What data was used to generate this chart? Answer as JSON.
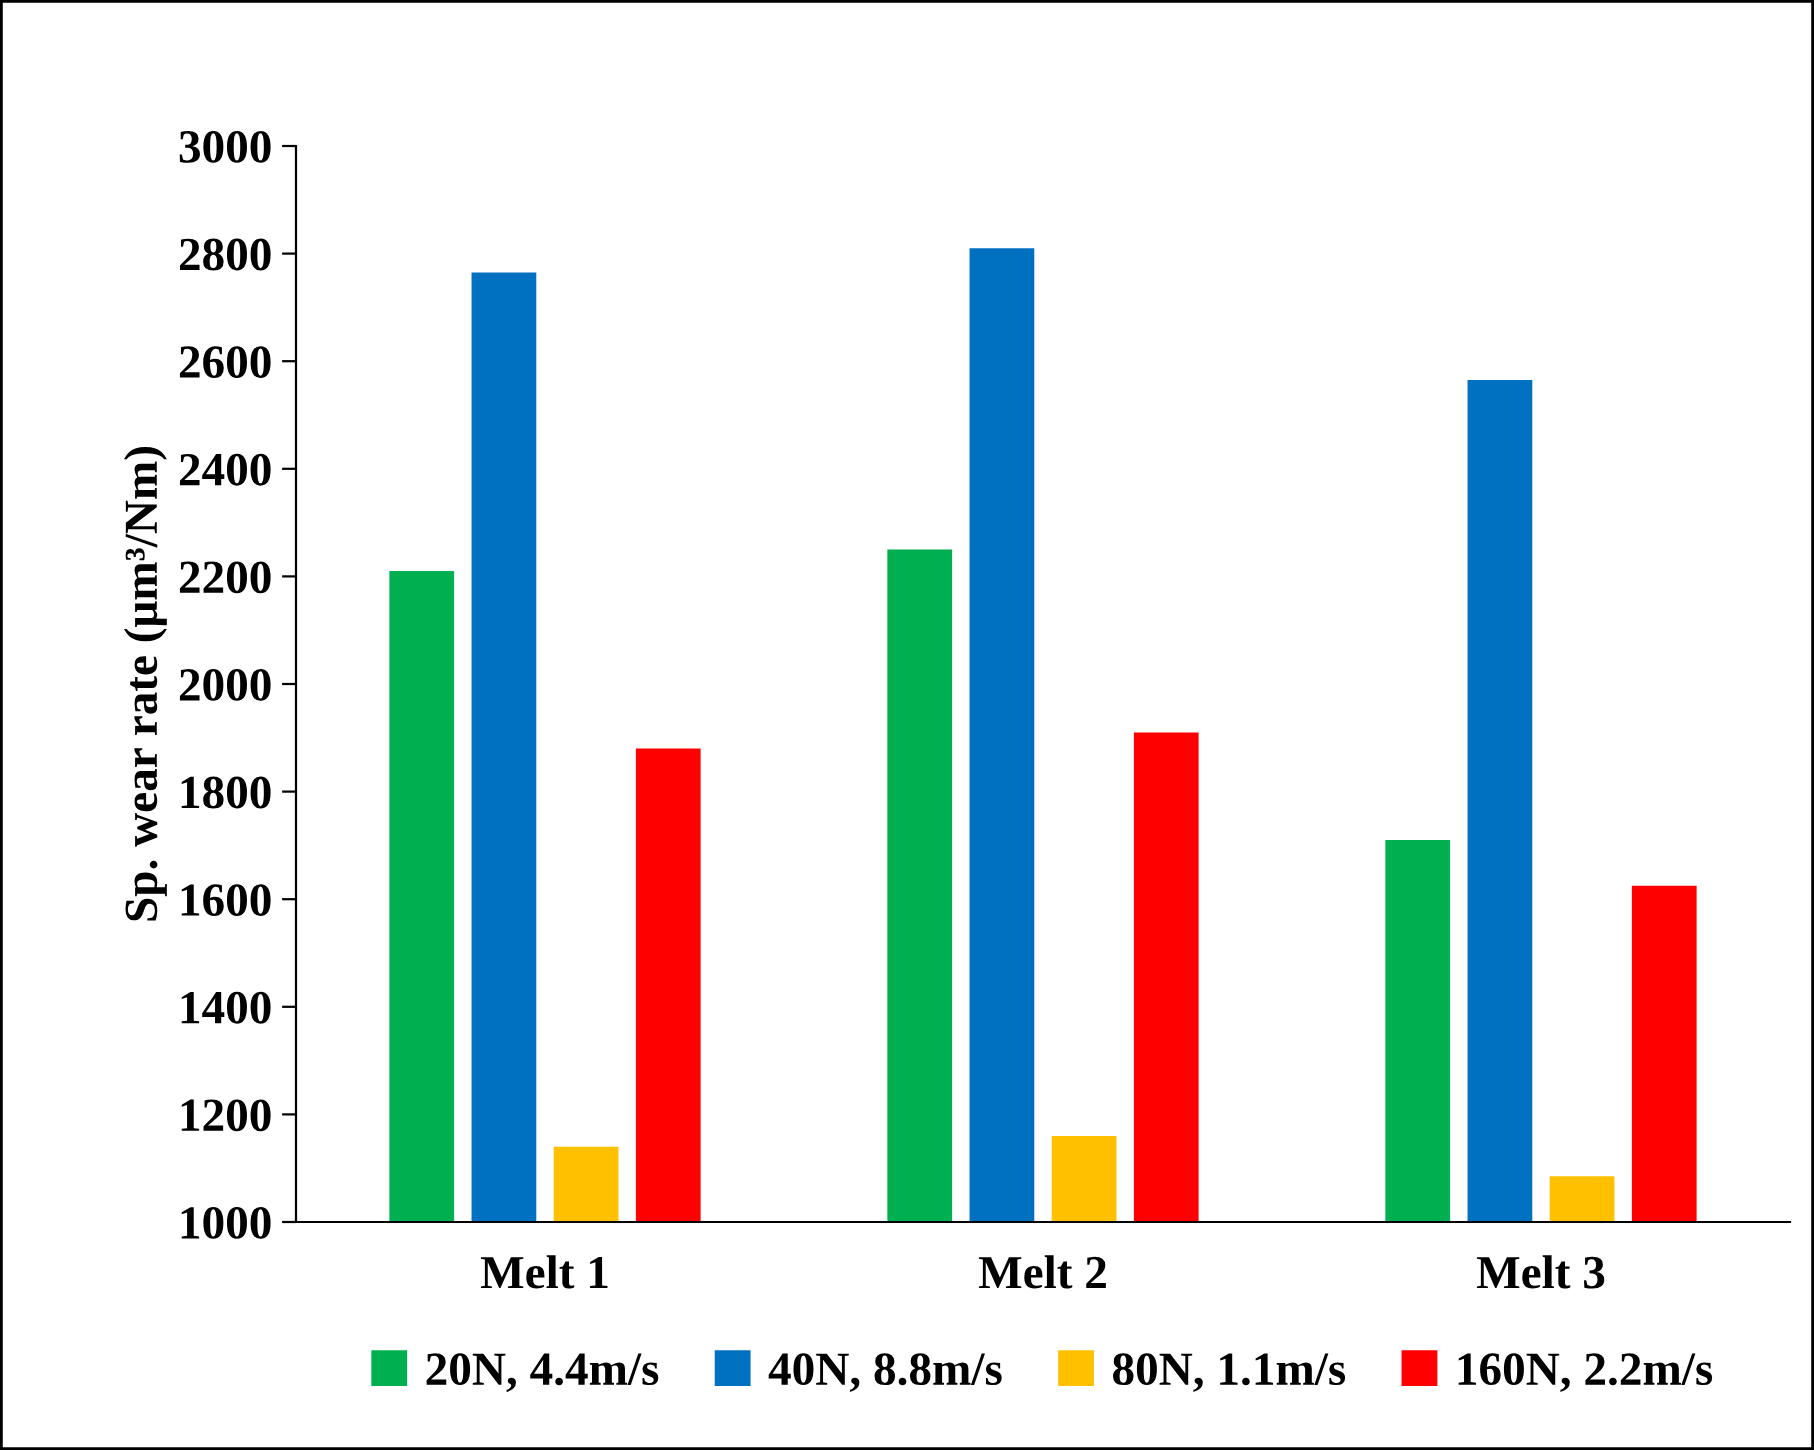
{
  "chart_data": {
    "type": "bar",
    "ylabel": "Sp. wear rate (μm³/Nm)",
    "categories": [
      "Melt 1",
      "Melt 2",
      "Melt 3"
    ],
    "series": [
      {
        "name": "20N, 4.4m/s",
        "color": "#00b050",
        "values": [
          2210,
          2250,
          1710
        ]
      },
      {
        "name": "40N, 8.8m/s",
        "color": "#0070c0",
        "values": [
          2765,
          2810,
          2565
        ]
      },
      {
        "name": "80N, 1.1m/s",
        "color": "#ffc000",
        "values": [
          1140,
          1160,
          1085
        ]
      },
      {
        "name": "160N, 2.2m/s",
        "color": "#ff0000",
        "values": [
          1880,
          1910,
          1625
        ]
      }
    ],
    "ylim": [
      1000,
      3000
    ],
    "yticks": [
      1000,
      1200,
      1400,
      1600,
      1800,
      2000,
      2200,
      2400,
      2600,
      2800,
      3000
    ],
    "grid": false,
    "legend": "bottom"
  }
}
